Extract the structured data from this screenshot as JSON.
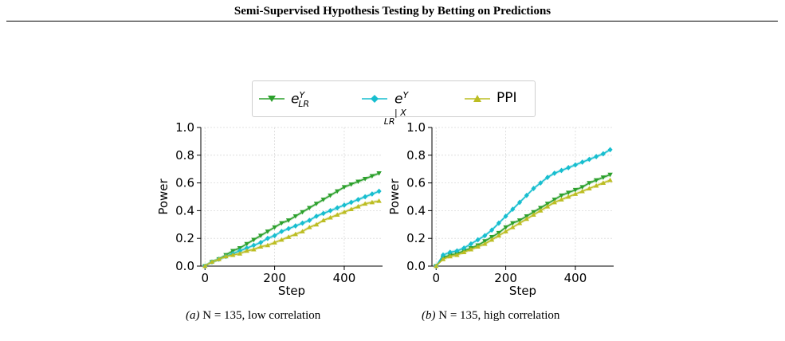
{
  "running_head": "Semi-Supervised Hypothesis Testing by Betting on Predictions",
  "legend": {
    "items": [
      {
        "key": "eY",
        "text": "e",
        "sup": "Y",
        "sub": "LR",
        "color": "#2ca02c",
        "marker": "triangle-down"
      },
      {
        "key": "eYX",
        "text": "e",
        "sup": "Y | X",
        "sub": "LR",
        "color": "#17becf",
        "marker": "diamond"
      },
      {
        "key": "ppi",
        "text": "PPI",
        "color": "#bcbd22",
        "marker": "triangle-up"
      }
    ]
  },
  "captions": [
    {
      "label": "(a)",
      "text": "N = 135, low correlation"
    },
    {
      "label": "(b)",
      "text": "N = 135, high correlation"
    }
  ],
  "chart_data": [
    {
      "type": "line",
      "xlabel": "Step",
      "ylabel": "Power",
      "xlim": [
        -12,
        510
      ],
      "ylim": [
        0,
        1.0
      ],
      "xticks": [
        0,
        200,
        400
      ],
      "yticks": [
        0.0,
        0.2,
        0.4,
        0.6,
        0.8,
        1.0
      ],
      "grid": true,
      "x": [
        0,
        20,
        40,
        60,
        80,
        100,
        120,
        140,
        160,
        180,
        200,
        220,
        240,
        260,
        280,
        300,
        320,
        340,
        360,
        380,
        400,
        420,
        440,
        460,
        480,
        500
      ],
      "series": [
        {
          "key": "eY",
          "values": [
            0.0,
            0.03,
            0.05,
            0.08,
            0.11,
            0.13,
            0.16,
            0.19,
            0.22,
            0.25,
            0.28,
            0.31,
            0.33,
            0.36,
            0.39,
            0.42,
            0.45,
            0.48,
            0.51,
            0.54,
            0.57,
            0.59,
            0.61,
            0.63,
            0.65,
            0.67
          ]
        },
        {
          "key": "eYX",
          "values": [
            0.0,
            0.03,
            0.05,
            0.07,
            0.09,
            0.11,
            0.13,
            0.15,
            0.17,
            0.2,
            0.22,
            0.25,
            0.27,
            0.29,
            0.31,
            0.33,
            0.36,
            0.38,
            0.4,
            0.42,
            0.44,
            0.46,
            0.48,
            0.5,
            0.52,
            0.54
          ]
        },
        {
          "key": "ppi",
          "values": [
            0.0,
            0.03,
            0.05,
            0.07,
            0.08,
            0.09,
            0.11,
            0.12,
            0.14,
            0.15,
            0.17,
            0.19,
            0.21,
            0.23,
            0.25,
            0.28,
            0.3,
            0.33,
            0.35,
            0.37,
            0.39,
            0.41,
            0.43,
            0.45,
            0.46,
            0.47
          ]
        }
      ]
    },
    {
      "type": "line",
      "xlabel": "Step",
      "ylabel": "Power",
      "xlim": [
        -12,
        510
      ],
      "ylim": [
        0,
        1.0
      ],
      "xticks": [
        0,
        200,
        400
      ],
      "yticks": [
        0.0,
        0.2,
        0.4,
        0.6,
        0.8,
        1.0
      ],
      "grid": true,
      "x": [
        0,
        20,
        40,
        60,
        80,
        100,
        120,
        140,
        160,
        180,
        200,
        220,
        240,
        260,
        280,
        300,
        320,
        340,
        360,
        380,
        400,
        420,
        440,
        460,
        480,
        500
      ],
      "series": [
        {
          "key": "eY",
          "values": [
            0.0,
            0.06,
            0.08,
            0.09,
            0.11,
            0.13,
            0.15,
            0.18,
            0.21,
            0.24,
            0.28,
            0.31,
            0.33,
            0.36,
            0.39,
            0.42,
            0.45,
            0.48,
            0.51,
            0.53,
            0.55,
            0.57,
            0.6,
            0.62,
            0.64,
            0.66
          ]
        },
        {
          "key": "eYX",
          "values": [
            0.0,
            0.08,
            0.1,
            0.11,
            0.13,
            0.16,
            0.19,
            0.22,
            0.26,
            0.31,
            0.36,
            0.41,
            0.46,
            0.51,
            0.56,
            0.6,
            0.64,
            0.67,
            0.69,
            0.71,
            0.73,
            0.75,
            0.77,
            0.79,
            0.81,
            0.84
          ]
        },
        {
          "key": "ppi",
          "values": [
            0.0,
            0.05,
            0.07,
            0.08,
            0.1,
            0.12,
            0.14,
            0.16,
            0.19,
            0.22,
            0.25,
            0.28,
            0.31,
            0.34,
            0.37,
            0.4,
            0.43,
            0.46,
            0.48,
            0.5,
            0.52,
            0.54,
            0.56,
            0.58,
            0.6,
            0.62
          ]
        }
      ]
    }
  ]
}
